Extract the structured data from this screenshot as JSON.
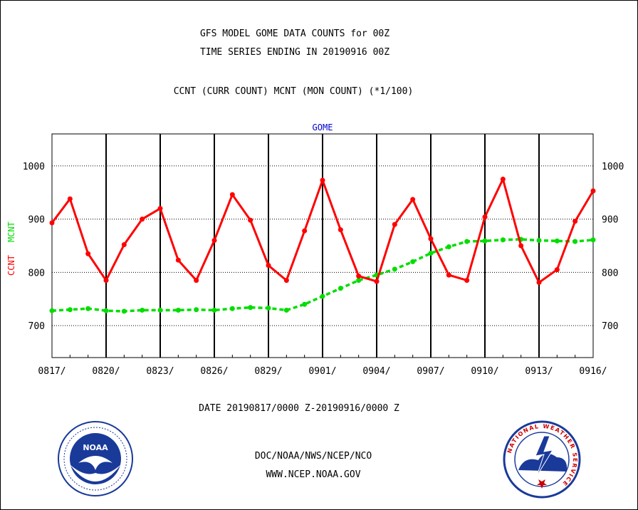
{
  "header": {
    "title_line1": "GFS MODEL GOME DATA COUNTS for 00Z",
    "title_line2": "TIME SERIES ENDING IN 20190916 00Z",
    "subtitle": "CCNT (CURR COUNT) MCNT (MON COUNT) (*1/100)"
  },
  "footer": {
    "date_range": "DATE 20190817/0000 Z-20190916/0000 Z",
    "org_line": "DOC/NOAA/NWS/NCEP/NCO",
    "url_line": "WWW.NCEP.NOAA.GOV"
  },
  "logos": {
    "noaa_text": "NOAA",
    "nws_ring": "NATIONAL WEATHER SERVICE"
  },
  "colors": {
    "ccnt": "#ff0000",
    "mcnt": "#00dd00",
    "panel_title": "#0000cc",
    "footer_blue": "#0000cc",
    "date_red": "#ff0000"
  },
  "chart_data": {
    "type": "line",
    "title": "GOME",
    "ylabel_series": [
      "CCNT",
      "MCNT"
    ],
    "ylim": [
      640,
      1060
    ],
    "yticks": [
      700,
      800,
      900,
      1000
    ],
    "x_tick_labels": [
      "0817/",
      "0820/",
      "0823/",
      "0826/",
      "0829/",
      "0901/",
      "0904/",
      "0907/",
      "0910/",
      "0913/",
      "0916/"
    ],
    "x": [
      "0817",
      "0818",
      "0819",
      "0820",
      "0821",
      "0822",
      "0823",
      "0824",
      "0825",
      "0826",
      "0827",
      "0828",
      "0829",
      "0830",
      "0831",
      "0901",
      "0902",
      "0903",
      "0904",
      "0905",
      "0906",
      "0907",
      "0908",
      "0909",
      "0910",
      "0911",
      "0912",
      "0913",
      "0914",
      "0915",
      "0916"
    ],
    "grid": true,
    "series": [
      {
        "name": "CCNT",
        "values": [
          893,
          938,
          835,
          785,
          852,
          900,
          920,
          823,
          785,
          860,
          946,
          898,
          813,
          785,
          878,
          973,
          880,
          793,
          783,
          890,
          937,
          863,
          795,
          785,
          904,
          975,
          850,
          781,
          805,
          896,
          953
        ]
      },
      {
        "name": "MCNT",
        "values": [
          728,
          730,
          732,
          728,
          727,
          729,
          729,
          729,
          730,
          729,
          732,
          734,
          733,
          729,
          740,
          755,
          770,
          785,
          795,
          806,
          820,
          836,
          848,
          858,
          859,
          861,
          862,
          860,
          859,
          858,
          861
        ]
      }
    ]
  }
}
